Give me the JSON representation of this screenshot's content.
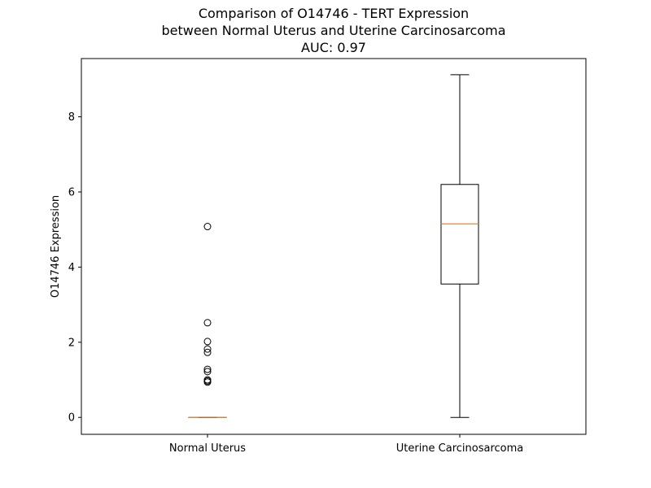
{
  "chart_data": {
    "type": "box",
    "title_lines": [
      "Comparison of O14746 - TERT Expression",
      "between Normal Uterus and Uterine Carcinosarcoma",
      "AUC: 0.97"
    ],
    "xlabel": "",
    "ylabel": "O14746 Expression",
    "ylim": [
      -0.45,
      9.55
    ],
    "yticks": [
      0,
      2,
      4,
      6,
      8
    ],
    "grid": false,
    "legend": "none",
    "categories": [
      "Normal Uterus",
      "Uterine Carcinosarcoma"
    ],
    "boxes": [
      {
        "category": "Normal Uterus",
        "whisker_low": 0,
        "q1": 0,
        "median": 0,
        "q3": 0,
        "whisker_high": 0,
        "outliers": [
          5.08,
          2.52,
          2.02,
          1.82,
          1.73,
          1.28,
          1.22,
          1.0,
          0.97,
          0.94
        ]
      },
      {
        "category": "Uterine Carcinosarcoma",
        "whisker_low": 0,
        "q1": 3.55,
        "median": 5.15,
        "q3": 6.2,
        "whisker_high": 9.12,
        "outliers": []
      }
    ],
    "colors": {
      "box": "#000000",
      "median": "#ff7f0e",
      "outlier_edge": "#000000"
    }
  }
}
